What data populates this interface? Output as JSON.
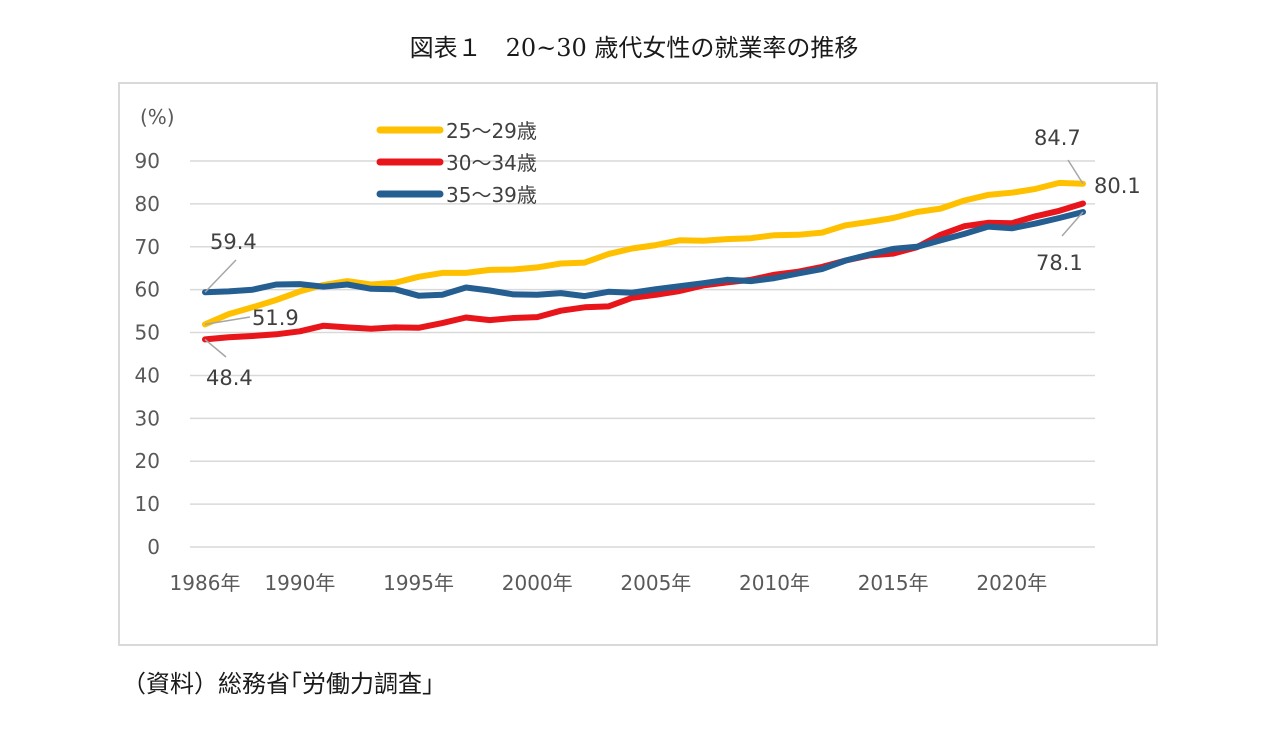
{
  "title": "図表１　20~30 歳代女性の就業率の推移",
  "source": "（資料）総務省｢労働力調査｣",
  "chart_data": {
    "type": "line",
    "ylabel": "(%)",
    "ylim": [
      0,
      90
    ],
    "yticks": [
      0,
      10,
      20,
      30,
      40,
      50,
      60,
      70,
      80,
      90
    ],
    "xlim": [
      1986,
      2023
    ],
    "xticks": [
      {
        "x": 1986,
        "label": "1986年"
      },
      {
        "x": 1990,
        "label": "1990年"
      },
      {
        "x": 1995,
        "label": "1995年"
      },
      {
        "x": 2000,
        "label": "2000年"
      },
      {
        "x": 2005,
        "label": "2005年"
      },
      {
        "x": 2010,
        "label": "2010年"
      },
      {
        "x": 2015,
        "label": "2015年"
      },
      {
        "x": 2020,
        "label": "2020年"
      }
    ],
    "grid": true,
    "legend_position": "top-left",
    "x": [
      1986,
      1987,
      1988,
      1989,
      1990,
      1991,
      1992,
      1993,
      1994,
      1995,
      1996,
      1997,
      1998,
      1999,
      2000,
      2001,
      2002,
      2003,
      2004,
      2005,
      2006,
      2007,
      2008,
      2009,
      2010,
      2011,
      2012,
      2013,
      2014,
      2015,
      2016,
      2017,
      2018,
      2019,
      2020,
      2021,
      2022,
      2023
    ],
    "series": [
      {
        "name": "25～29歳",
        "color": "#FFC000",
        "values": [
          51.9,
          54.3,
          55.9,
          57.6,
          59.6,
          61.1,
          62.0,
          61.2,
          61.6,
          63.0,
          63.9,
          63.9,
          64.6,
          64.7,
          65.2,
          66.1,
          66.3,
          68.3,
          69.6,
          70.4,
          71.5,
          71.4,
          71.8,
          72.0,
          72.7,
          72.8,
          73.3,
          75.0,
          75.8,
          76.7,
          78.1,
          78.9,
          80.8,
          82.1,
          82.6,
          83.5,
          84.9,
          84.7
        ]
      },
      {
        "name": "30～34歳",
        "color": "#E8151B",
        "values": [
          48.4,
          48.9,
          49.2,
          49.6,
          50.3,
          51.6,
          51.2,
          50.9,
          51.2,
          51.1,
          52.2,
          53.5,
          52.9,
          53.4,
          53.6,
          55.1,
          55.9,
          56.1,
          58.1,
          58.8,
          59.7,
          61.0,
          61.7,
          62.3,
          63.5,
          64.2,
          65.3,
          66.8,
          68.0,
          68.4,
          69.9,
          72.8,
          74.8,
          75.6,
          75.5,
          77.1,
          78.4,
          80.1
        ]
      },
      {
        "name": "35～39歳",
        "color": "#255E91",
        "values": [
          59.4,
          59.6,
          60.0,
          61.2,
          61.3,
          60.7,
          61.2,
          60.2,
          60.1,
          58.6,
          58.8,
          60.5,
          59.8,
          58.9,
          58.8,
          59.2,
          58.5,
          59.5,
          59.3,
          60.1,
          60.8,
          61.5,
          62.3,
          62.0,
          62.7,
          63.8,
          64.8,
          66.8,
          68.2,
          69.5,
          70.0,
          71.5,
          73.0,
          74.7,
          74.3,
          75.4,
          76.7,
          78.1
        ]
      }
    ],
    "annotations": [
      {
        "label": "59.4",
        "series": 2,
        "index": 0
      },
      {
        "label": "51.9",
        "series": 0,
        "index": 0
      },
      {
        "label": "48.4",
        "series": 1,
        "index": 0
      },
      {
        "label": "84.7",
        "series": 0,
        "index": 37
      },
      {
        "label": "80.1",
        "series": 1,
        "index": 37
      },
      {
        "label": "78.1",
        "series": 2,
        "index": 37
      }
    ]
  }
}
